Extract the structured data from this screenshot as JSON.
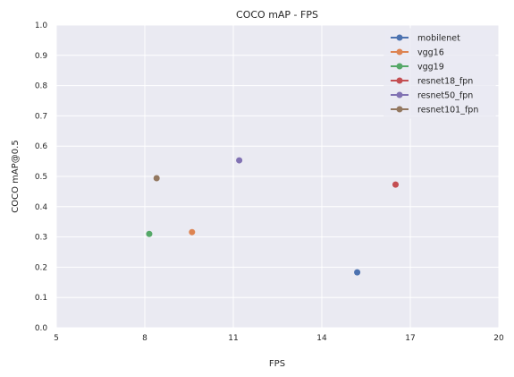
{
  "chart_data": {
    "type": "scatter",
    "title": "COCO mAP - FPS",
    "xlabel": "FPS",
    "ylabel": "COCO mAP@0.5",
    "xlim": [
      5,
      20
    ],
    "ylim": [
      0,
      1.0
    ],
    "xticks": [
      "5",
      "8",
      "11",
      "14",
      "17",
      "20"
    ],
    "yticks": [
      "0.0",
      "0.1",
      "0.2",
      "0.3",
      "0.4",
      "0.5",
      "0.6",
      "0.7",
      "0.8",
      "0.9",
      "1.0"
    ],
    "grid": true,
    "legend_position": "top-right",
    "background_color": "#eaeaf2",
    "series": [
      {
        "name": "mobilenet",
        "color": "#4c72b0",
        "x": [
          15.2
        ],
        "y": [
          0.183
        ]
      },
      {
        "name": "vgg16",
        "color": "#dd8452",
        "x": [
          9.6
        ],
        "y": [
          0.316
        ]
      },
      {
        "name": "vgg19",
        "color": "#55a868",
        "x": [
          8.15
        ],
        "y": [
          0.31
        ]
      },
      {
        "name": "resnet18_fpn",
        "color": "#c44e52",
        "x": [
          16.5
        ],
        "y": [
          0.473
        ]
      },
      {
        "name": "resnet50_fpn",
        "color": "#8172b3",
        "x": [
          11.2
        ],
        "y": [
          0.553
        ]
      },
      {
        "name": "resnet101_fpn",
        "color": "#937860",
        "x": [
          8.4
        ],
        "y": [
          0.494
        ]
      }
    ]
  }
}
